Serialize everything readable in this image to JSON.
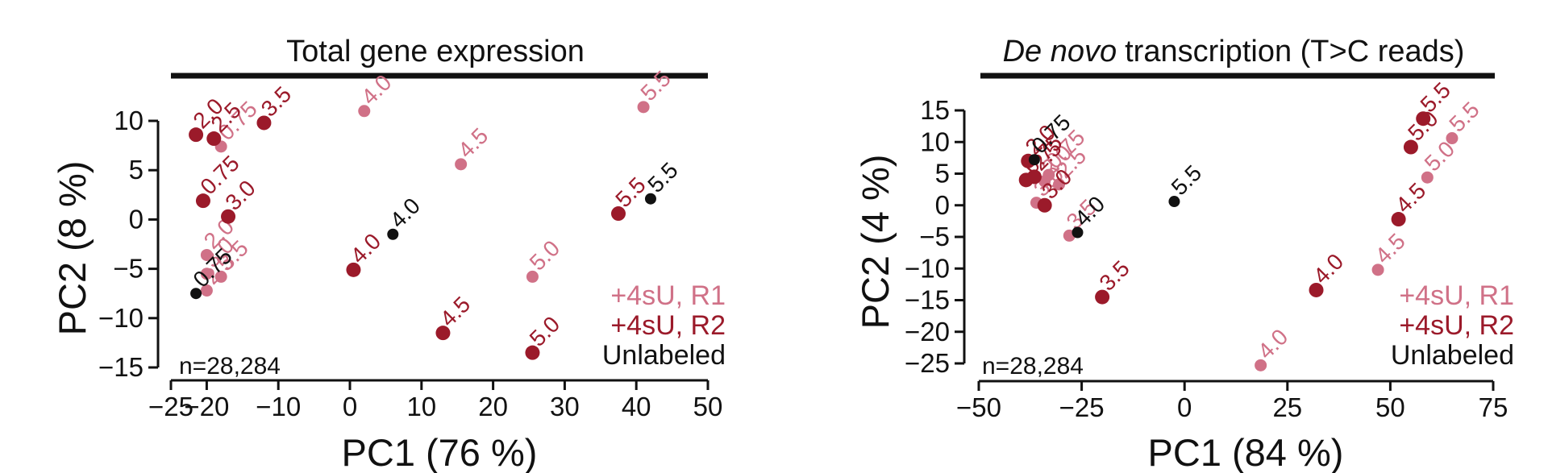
{
  "colors": {
    "r1": "#d07187",
    "r2": "#9b1a2a",
    "unlabeled": "#111111"
  },
  "legend": {
    "r1": "+4sU, R1",
    "r2": "+4sU, R2",
    "unlabeled": "Unlabeled"
  },
  "chart_data": [
    {
      "type": "scatter",
      "title": "Total gene expression",
      "title_italic_part": "",
      "xlabel": "PC1 (76 %)",
      "ylabel": "PC2 (8 %)",
      "xlim": [
        -25,
        50
      ],
      "ylim": [
        -15,
        10
      ],
      "xticks": [
        -25,
        -20,
        -10,
        0,
        10,
        20,
        30,
        40,
        50
      ],
      "yticks": [
        -15,
        -10,
        -5,
        0,
        5,
        10
      ],
      "xtick_labels": [
        "−25",
        "−20",
        "−10",
        "0",
        "10",
        "20",
        "30",
        "40",
        "50"
      ],
      "ytick_labels": [
        "−15",
        "−10",
        "−5",
        "0",
        "5",
        "10"
      ],
      "annotation": "n=28,284",
      "series": [
        {
          "name": "+4sU, R1",
          "color_key": "r1",
          "points": [
            {
              "x": -18.0,
              "y": 7.4,
              "label": "0.75"
            },
            {
              "x": -20.0,
              "y": -3.6,
              "label": "2.0"
            },
            {
              "x": -20.0,
              "y": -7.2,
              "label": "2.5"
            },
            {
              "x": -20.0,
              "y": -5.5,
              "label": "3.0"
            },
            {
              "x": -18.0,
              "y": -5.8,
              "label": "3.5"
            },
            {
              "x": 2.0,
              "y": 11.0,
              "label": "4.0"
            },
            {
              "x": 15.5,
              "y": 5.6,
              "label": "4.5"
            },
            {
              "x": 25.5,
              "y": -5.8,
              "label": "5.0"
            },
            {
              "x": 41.0,
              "y": 11.4,
              "label": "5.5"
            }
          ]
        },
        {
          "name": "+4sU, R2",
          "color_key": "r2",
          "points": [
            {
              "x": -20.5,
              "y": 1.9,
              "label": "0.75"
            },
            {
              "x": -21.5,
              "y": 8.6,
              "label": "2.0"
            },
            {
              "x": -19.0,
              "y": 8.2,
              "label": "2.5"
            },
            {
              "x": -17.0,
              "y": 0.3,
              "label": "3.0"
            },
            {
              "x": -12.0,
              "y": 9.8,
              "label": "3.5"
            },
            {
              "x": 0.5,
              "y": -5.1,
              "label": "4.0"
            },
            {
              "x": 13.0,
              "y": -11.5,
              "label": "4.5"
            },
            {
              "x": 25.5,
              "y": -13.5,
              "label": "5.0"
            },
            {
              "x": 37.5,
              "y": 0.6,
              "label": "5.5"
            }
          ]
        },
        {
          "name": "Unlabeled",
          "color_key": "unlabeled",
          "points": [
            {
              "x": -21.5,
              "y": -7.5,
              "label": "0.75"
            },
            {
              "x": 6.0,
              "y": -1.5,
              "label": "4.0"
            },
            {
              "x": 42.0,
              "y": 2.1,
              "label": "5.5"
            }
          ]
        }
      ]
    },
    {
      "type": "scatter",
      "title": "transcription (T>C reads)",
      "title_italic_part": "De novo",
      "xlabel": "PC1 (84 %)",
      "ylabel": "PC2 (4 %)",
      "xlim": [
        -50,
        75
      ],
      "ylim": [
        -25,
        15
      ],
      "xticks": [
        -50,
        -25,
        0,
        25,
        50,
        75
      ],
      "yticks": [
        -25,
        -20,
        -15,
        -10,
        -5,
        0,
        5,
        10,
        15
      ],
      "xtick_labels": [
        "−50",
        "−25",
        "0",
        "25",
        "50",
        "75"
      ],
      "ytick_labels": [
        "−25",
        "−20",
        "−15",
        "−10",
        "−5",
        "0",
        "5",
        "10",
        "15"
      ],
      "annotation": "n=28,284",
      "series": [
        {
          "name": "+4sU, R1",
          "color_key": "r1",
          "points": [
            {
              "x": -33.0,
              "y": 4.8,
              "label": "0.75"
            },
            {
              "x": -34.0,
              "y": 3.8,
              "label": "2.0"
            },
            {
              "x": -30.5,
              "y": 3.3,
              "label": "2.5"
            },
            {
              "x": -36.0,
              "y": 0.4,
              "label": "3.0"
            },
            {
              "x": -28.0,
              "y": -4.8,
              "label": "3.5"
            },
            {
              "x": 18.5,
              "y": -25.3,
              "label": "4.0"
            },
            {
              "x": 47.0,
              "y": -10.2,
              "label": "4.5"
            },
            {
              "x": 59.0,
              "y": 4.4,
              "label": "5.0"
            },
            {
              "x": 65.0,
              "y": 10.6,
              "label": "5.5"
            }
          ]
        },
        {
          "name": "+4sU, R2",
          "color_key": "r2",
          "points": [
            {
              "x": -38.5,
              "y": 4.0,
              "label": "0.75"
            },
            {
              "x": -38.0,
              "y": 7.0,
              "label": "2.0"
            },
            {
              "x": -36.5,
              "y": 4.5,
              "label": "2.5"
            },
            {
              "x": -34.0,
              "y": 0.0,
              "label": "3.0"
            },
            {
              "x": -20.0,
              "y": -14.5,
              "label": "3.5"
            },
            {
              "x": 32.0,
              "y": -13.4,
              "label": "4.0"
            },
            {
              "x": 52.0,
              "y": -2.2,
              "label": "4.5"
            },
            {
              "x": 55.0,
              "y": 9.2,
              "label": "5.0"
            },
            {
              "x": 58.0,
              "y": 13.7,
              "label": "5.5"
            }
          ]
        },
        {
          "name": "Unlabeled",
          "color_key": "unlabeled",
          "points": [
            {
              "x": -36.5,
              "y": 7.2,
              "label": "0.75"
            },
            {
              "x": -26.0,
              "y": -4.3,
              "label": "4.0"
            },
            {
              "x": -2.5,
              "y": 0.6,
              "label": "5.5"
            }
          ]
        }
      ]
    }
  ]
}
